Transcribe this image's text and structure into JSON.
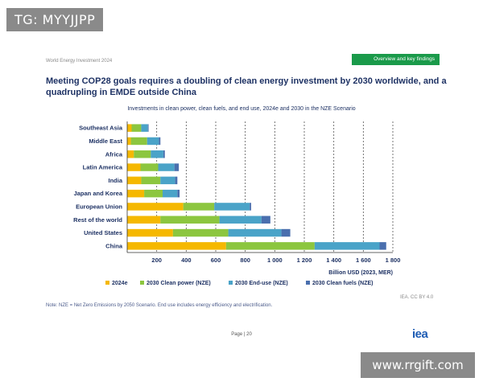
{
  "watermark_top": "TG: MYYJJPP",
  "watermark_bottom": "www.rrgift.com",
  "report_label": "World Energy Investment 2024",
  "section_tag": "Overview and key findings",
  "headline": "Meeting COP28 goals requires a doubling of clean energy investment by 2030 worldwide, and a quadrupling in EMDE outside China",
  "subtitle": "Investments in clean power, clean fuels, and end use, 2024e and 2030 in the NZE Scenario",
  "note": "Note: NZE = Net Zero Emissions by 2050 Scenario. End use includes energy efficiency and electrification.",
  "credit": "IEA. CC BY 4.0",
  "page_number": "Page | 20",
  "logo": "iea",
  "chart_data": {
    "type": "bar",
    "orientation": "horizontal",
    "stacked": true,
    "categories": [
      "Southeast Asia",
      "Middle East",
      "Africa",
      "Latin America",
      "India",
      "Japan and Korea",
      "European Union",
      "Rest of the world",
      "United States",
      "China"
    ],
    "series": [
      {
        "name": "2024e",
        "color": "#f5b800",
        "values": [
          30,
          25,
          45,
          90,
          95,
          115,
          380,
          225,
          310,
          670
        ]
      },
      {
        "name": "2030 Clean power (NZE)",
        "color": "#8cc63f",
        "values": [
          65,
          110,
          115,
          120,
          130,
          125,
          210,
          400,
          375,
          600
        ]
      },
      {
        "name": "2030 End-use (NZE)",
        "color": "#4aa3c8",
        "values": [
          45,
          80,
          85,
          110,
          100,
          100,
          240,
          285,
          360,
          440
        ]
      },
      {
        "name": "2030 Clean fuels (NZE)",
        "color": "#4a6fae",
        "values": [
          5,
          10,
          10,
          30,
          15,
          15,
          10,
          60,
          60,
          45
        ]
      }
    ],
    "xlabel": "Billion USD (2023, MER)",
    "xlim": [
      0,
      1800
    ],
    "xticks": [
      200,
      400,
      600,
      800,
      1000,
      1200,
      1400,
      1600,
      1800
    ],
    "xtick_labels": [
      "200",
      "400",
      "600",
      "800",
      "1 000",
      "1 200",
      "1 400",
      "1 600",
      "1 800"
    ],
    "gridlines": "dashed vertical",
    "legend_position": "bottom"
  }
}
